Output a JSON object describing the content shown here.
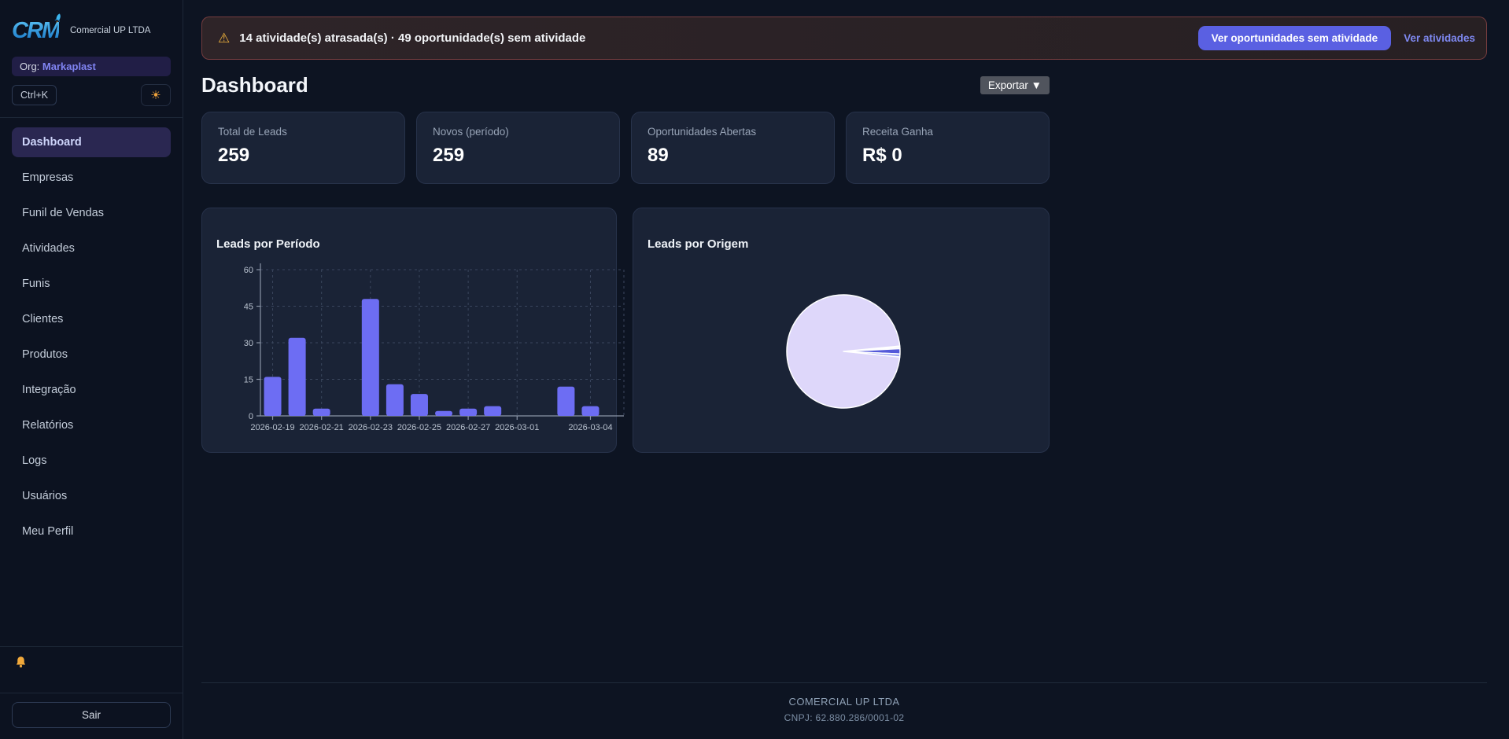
{
  "logo": {
    "text": "CRM"
  },
  "sidebar": {
    "company_name": "Comercial UP LTDA",
    "org_label": "Org:",
    "org_name": "Markaplast",
    "shortcut": "Ctrl+K",
    "theme_icon": "☀",
    "items": [
      {
        "label": "Dashboard",
        "active": true
      },
      {
        "label": "Empresas",
        "active": false
      },
      {
        "label": "Funil de Vendas",
        "active": false
      },
      {
        "label": "Atividades",
        "active": false
      },
      {
        "label": "Funis",
        "active": false
      },
      {
        "label": "Clientes",
        "active": false
      },
      {
        "label": "Produtos",
        "active": false
      },
      {
        "label": "Integração",
        "active": false
      },
      {
        "label": "Relatórios",
        "active": false
      },
      {
        "label": "Logs",
        "active": false
      },
      {
        "label": "Usuários",
        "active": false
      },
      {
        "label": "Meu Perfil",
        "active": false
      }
    ],
    "logout_label": "Sair"
  },
  "alert": {
    "icon": "⚠",
    "text": "14 atividade(s) atrasada(s) · 49 oportunidade(s) sem atividade",
    "primary_button": "Ver oportunidades sem atividade",
    "link": "Ver atividades"
  },
  "header": {
    "title": "Dashboard",
    "export_label": "Exportar ▼"
  },
  "stats": [
    {
      "label": "Total de Leads",
      "value": "259"
    },
    {
      "label": "Novos (período)",
      "value": "259"
    },
    {
      "label": "Oportunidades Abertas",
      "value": "89"
    },
    {
      "label": "Receita Ganha",
      "value": "R$ 0"
    }
  ],
  "chart_data": [
    {
      "type": "bar",
      "title": "Leads por Período",
      "categories": [
        "2026-02-19",
        "2026-02-20",
        "2026-02-21",
        "2026-02-22",
        "2026-02-23",
        "2026-02-24",
        "2026-02-25",
        "2026-02-26",
        "2026-02-27",
        "2026-02-28",
        "2026-03-01",
        "2026-03-02",
        "2026-03-03",
        "2026-03-04"
      ],
      "values": [
        16,
        32,
        3,
        0,
        48,
        13,
        9,
        2,
        3,
        4,
        0,
        0,
        12,
        4
      ],
      "ticks": [
        {
          "index": 0,
          "label": "2026-02-19"
        },
        {
          "index": 2,
          "label": "2026-02-21"
        },
        {
          "index": 4,
          "label": "2026-02-23"
        },
        {
          "index": 6,
          "label": "2026-02-25"
        },
        {
          "index": 8,
          "label": "2026-02-27"
        },
        {
          "index": 10,
          "label": "2026-03-01"
        },
        {
          "index": 13,
          "label": "2026-03-04"
        }
      ],
      "ylim": [
        0,
        60
      ],
      "yticks": [
        0,
        15,
        30,
        45,
        60
      ],
      "bar_color": "#6d6df3",
      "grid": "dashed",
      "legend": "none"
    },
    {
      "type": "pie",
      "title": "Leads por Origem",
      "start_angle": 84.5,
      "slices": [
        {
          "value": 0.35,
          "color": "#e8e3fc"
        },
        {
          "value": 0.4,
          "color": "#c6cdfb"
        },
        {
          "value": 1.5,
          "color": "#5459d9"
        },
        {
          "value": 0.85,
          "color": "#99a0f4"
        },
        {
          "value": 96.9,
          "color": "#ded7fa"
        }
      ],
      "border_color": "#ffffff",
      "legend": "none"
    }
  ],
  "footer": {
    "company": "COMERCIAL UP LTDA",
    "cnpj": "CNPJ: 62.880.286/0001-02"
  }
}
